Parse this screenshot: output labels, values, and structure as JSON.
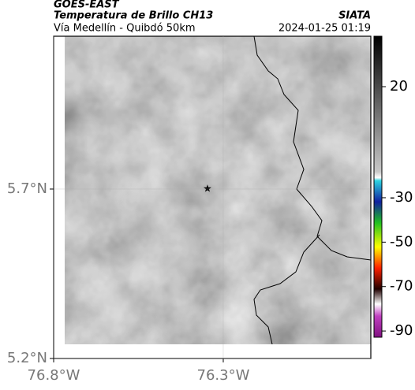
{
  "header": {
    "title": "GOES-EAST",
    "subtitle": "Temperatura de Brillo CH13",
    "location": "Vía Medellín - Quibdó 50km",
    "source": "SIATA",
    "datetime": "2024-01-25 01:19"
  },
  "map": {
    "xlim": [
      -76.8,
      -75.865
    ],
    "ylim": [
      5.2,
      6.151
    ],
    "xticks": [
      {
        "value": -76.8,
        "label": "76.8°W"
      },
      {
        "value": -76.3,
        "label": "76.3°W"
      }
    ],
    "yticks": [
      {
        "value": 5.7,
        "label": "5.7°N"
      },
      {
        "value": 5.2,
        "label": "5.2°N"
      }
    ]
  },
  "colorbar": {
    "lim": [
      -92.8,
      42.7
    ],
    "ticks": [
      20,
      -30,
      -50,
      -70,
      -90
    ]
  }
}
